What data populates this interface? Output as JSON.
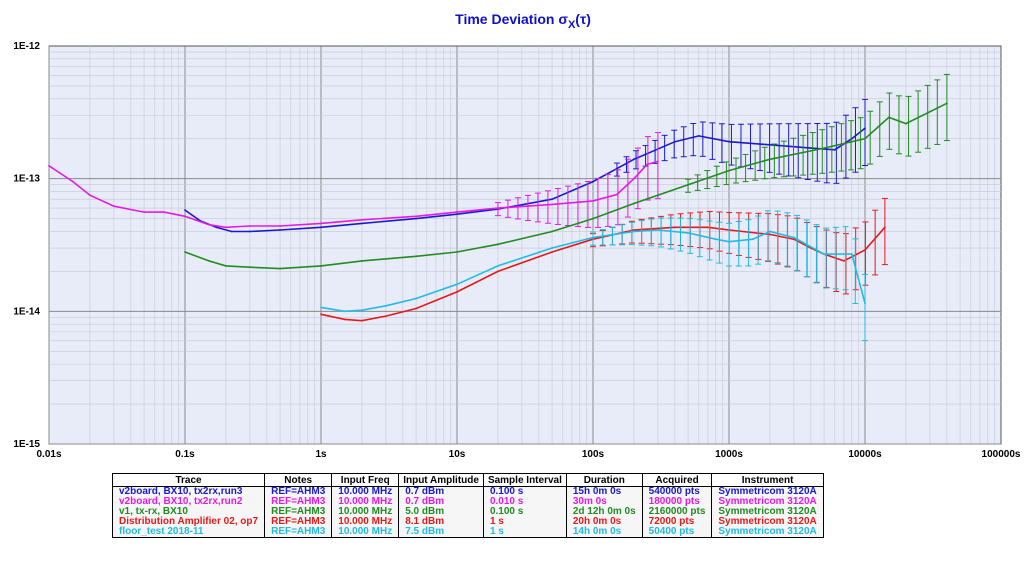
{
  "chart_data": {
    "type": "line",
    "title_main": "Time Deviation σ",
    "title_sub": "X",
    "title_tail": "(τ)",
    "x_scale": "log",
    "y_scale": "log",
    "xlim": [
      0.01,
      100000
    ],
    "ylim": [
      1e-15,
      1e-12
    ],
    "x_tick_labels": [
      "0.01s",
      "0.1s",
      "1s",
      "10s",
      "100s",
      "1000s",
      "10000s",
      "100000s"
    ],
    "y_tick_labels": [
      "1E-12",
      "1E-13",
      "1E-14",
      "1E-15"
    ],
    "grid": true,
    "series": [
      {
        "name": "v2board, BX10, tx2rx,run3",
        "color": "#1a1acd",
        "x": [
          0.1,
          0.13,
          0.17,
          0.22,
          0.3,
          0.5,
          1,
          2,
          5,
          10,
          20,
          50,
          100,
          200,
          400,
          600,
          1000,
          2000,
          4000,
          6000,
          8000,
          10000
        ],
        "y": [
          5.8e-14,
          4.8e-14,
          4.3e-14,
          4e-14,
          4e-14,
          4.1e-14,
          4.3e-14,
          4.6e-14,
          5e-14,
          5.4e-14,
          5.9e-14,
          7e-14,
          9.5e-14,
          1.4e-13,
          1.9e-13,
          2.1e-13,
          1.9e-13,
          1.8e-13,
          1.7e-13,
          1.65e-13,
          2e-13,
          2.4e-13
        ],
        "err_from_x": 150
      },
      {
        "name": "v2board, BX10, tx2rx,run2",
        "color": "#e619e6",
        "x": [
          0.01,
          0.015,
          0.02,
          0.03,
          0.05,
          0.07,
          0.1,
          0.15,
          0.2,
          0.3,
          0.5,
          1,
          2,
          5,
          10,
          20,
          50,
          100,
          150,
          200,
          250,
          300
        ],
        "y": [
          1.25e-13,
          9.5e-14,
          7.5e-14,
          6.2e-14,
          5.6e-14,
          5.6e-14,
          5.2e-14,
          4.5e-14,
          4.3e-14,
          4.4e-14,
          4.4e-14,
          4.6e-14,
          4.9e-14,
          5.2e-14,
          5.6e-14,
          6e-14,
          6.4e-14,
          6.8e-14,
          7.6e-14,
          1e-13,
          1.28e-13,
          1.35e-13
        ],
        "err_from_x": 20
      },
      {
        "name": "v1, tx-rx, BX10",
        "color": "#218c21",
        "x": [
          0.1,
          0.15,
          0.2,
          0.3,
          0.5,
          1,
          2,
          5,
          10,
          20,
          50,
          100,
          200,
          500,
          1000,
          2000,
          5000,
          10000,
          15000,
          20000,
          40000
        ],
        "y": [
          2.8e-14,
          2.4e-14,
          2.2e-14,
          2.15e-14,
          2.1e-14,
          2.2e-14,
          2.4e-14,
          2.6e-14,
          2.8e-14,
          3.2e-14,
          4e-14,
          5e-14,
          6.5e-14,
          9e-14,
          1.15e-13,
          1.4e-13,
          1.7e-13,
          2e-13,
          2.9e-13,
          2.6e-13,
          3.7e-13
        ],
        "err_from_x": 500
      },
      {
        "name": "Distribution Amplifier 02, op7",
        "color": "#e61919",
        "x": [
          1,
          1.5,
          2,
          3,
          5,
          10,
          20,
          50,
          100,
          200,
          400,
          700,
          1000,
          2000,
          3000,
          4000,
          5000,
          7000,
          10000,
          14000
        ],
        "y": [
          9.5e-15,
          8.7e-15,
          8.5e-15,
          9.2e-15,
          1.05e-14,
          1.4e-14,
          2e-14,
          2.8e-14,
          3.5e-14,
          4.1e-14,
          4.3e-14,
          4.3e-14,
          4.1e-14,
          3.8e-14,
          3.5e-14,
          3e-14,
          2.7e-14,
          2.4e-14,
          2.9e-14,
          4.3e-14
        ],
        "err_from_x": 100
      },
      {
        "name": "floor_test 2018-11",
        "color": "#1ebce6",
        "x": [
          1,
          1.5,
          2,
          3,
          5,
          10,
          20,
          50,
          100,
          200,
          300,
          500,
          800,
          1000,
          1500,
          2000,
          3000,
          5000,
          8000,
          10000
        ],
        "y": [
          1.07e-14,
          1e-14,
          1.02e-14,
          1.1e-14,
          1.25e-14,
          1.6e-14,
          2.2e-14,
          3e-14,
          3.6e-14,
          4e-14,
          4.1e-14,
          3.9e-14,
          3.5e-14,
          3.35e-14,
          3.5e-14,
          4e-14,
          3.6e-14,
          2.7e-14,
          2.7e-14,
          1.15e-14
        ],
        "err_from_x": 100
      }
    ],
    "legend_table": {
      "headers": [
        "Trace",
        "Notes",
        "Input Freq",
        "Input Amplitude",
        "Sample Interval",
        "Duration",
        "Acquired",
        "Instrument"
      ],
      "rows": [
        {
          "color": "#1a1acd",
          "cells": [
            "v2board, BX10, tx2rx,run3",
            "REF=AHM3",
            "10.000 MHz",
            "0.7 dBm",
            "0.100 s",
            "15h 0m 0s",
            "540000 pts",
            "Symmetricom 3120A"
          ]
        },
        {
          "color": "#e619e6",
          "cells": [
            "v2board, BX10, tx2rx,run2",
            "REF=AHM3",
            "10.000 MHz",
            "0.7 dBm",
            "0.010 s",
            "30m 0s",
            "180000 pts",
            "Symmetricom 3120A"
          ]
        },
        {
          "color": "#218c21",
          "cells": [
            "v1, tx-rx, BX10",
            "REF=AHM3",
            "10.000 MHz",
            "5.0 dBm",
            "0.100 s",
            "2d 12h 0m 0s",
            "2160000 pts",
            "Symmetricom 3120A"
          ]
        },
        {
          "color": "#e61919",
          "cells": [
            "Distribution Amplifier 02, op7",
            "REF=AHM3",
            "10.000 MHz",
            "8.1 dBm",
            "1 s",
            "20h 0m 0s",
            "72000 pts",
            "Symmetricom 3120A"
          ]
        },
        {
          "color": "#1ebce6",
          "cells": [
            "floor_test 2018-11",
            "REF=AHM3",
            "10.000 MHz",
            "7.5 dBm",
            "1 s",
            "14h 0m 0s",
            "50400 pts",
            "Symmetricom 3120A"
          ]
        }
      ]
    }
  }
}
